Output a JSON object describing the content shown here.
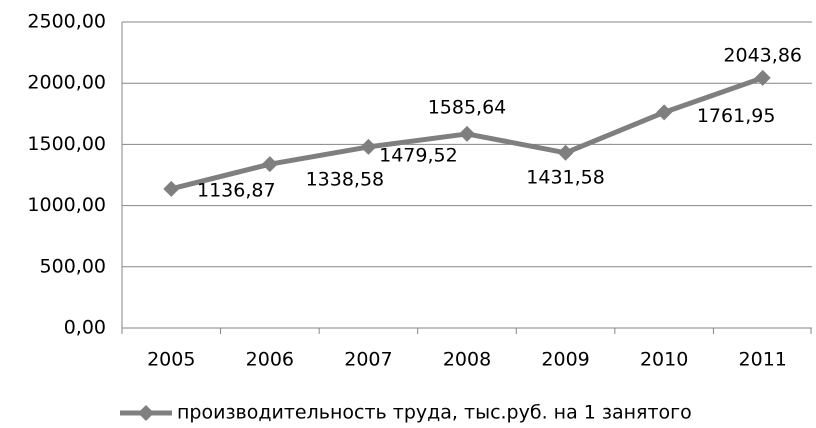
{
  "chart_data": {
    "type": "line",
    "categories": [
      "2005",
      "2006",
      "2007",
      "2008",
      "2009",
      "2010",
      "2011"
    ],
    "series": [
      {
        "name": "производительность труда, тыс.руб. на 1 занятого",
        "color": "#7f7f7f",
        "values": [
          1136.87,
          1338.58,
          1479.52,
          1585.64,
          1431.58,
          1761.95,
          2043.86
        ],
        "value_labels": [
          "1136,87",
          "1338,58",
          "1479,52",
          "1585,64",
          "1431,58",
          "1761,95",
          "2043,86"
        ]
      }
    ],
    "ylim": [
      0,
      2500
    ],
    "yticks": [
      {
        "value": 0,
        "label": "0,00"
      },
      {
        "value": 500,
        "label": "500,00"
      },
      {
        "value": 1000,
        "label": "1000,00"
      },
      {
        "value": 1500,
        "label": "1500,00"
      },
      {
        "value": 2000,
        "label": "2000,00"
      },
      {
        "value": 2500,
        "label": "2500,00"
      }
    ],
    "grid": true,
    "legend": "bottom"
  }
}
